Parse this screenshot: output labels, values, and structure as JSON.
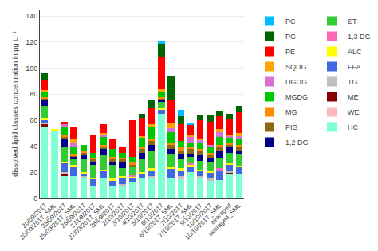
{
  "chart_data": {
    "type": "bar",
    "stacked": true,
    "categories": [
      "20/09/2017",
      "20/09/2017_SML",
      "25/09/2017",
      "25/09/2017_SML",
      "26/09/2017",
      "27/09/2017",
      "27/09/2017_SML",
      "28/09/2017",
      "2/10/2017",
      "3/10/2017",
      "4/10/2017",
      "5/10/2017",
      "6/10/2017",
      "6/10/2017_SML",
      "7/10/2017",
      "7/10/2017_SML",
      "9/10/2017",
      "10/10/2017",
      "10/10/2017_SML",
      "averaged",
      "averaged_SML"
    ],
    "series": [
      {
        "name": "HC",
        "color": "#7fffd4",
        "values": [
          55,
          52,
          17,
          17,
          16,
          9,
          15,
          10,
          10,
          13,
          15,
          16,
          65,
          15,
          15,
          20,
          16,
          14,
          14,
          19,
          19
        ]
      },
      {
        "name": "WE",
        "color": "#ffb6c1",
        "values": [
          0,
          0,
          0,
          0,
          0,
          0,
          0,
          0,
          0,
          0,
          0,
          0,
          0,
          0,
          1,
          0,
          0,
          0,
          0,
          0,
          0
        ]
      },
      {
        "name": "ME",
        "color": "#8b0000",
        "values": [
          2,
          0,
          2,
          0,
          0,
          0,
          0,
          0,
          0,
          0,
          0,
          0,
          0,
          0,
          0,
          0,
          0,
          0,
          0,
          1,
          0
        ]
      },
      {
        "name": "TG",
        "color": "#c0c0c0",
        "values": [
          1,
          0,
          1,
          0,
          1,
          0,
          0,
          0,
          1,
          0,
          0,
          1,
          0,
          0,
          1,
          0,
          1,
          1,
          0,
          1,
          0
        ]
      },
      {
        "name": "FFA",
        "color": "#4169e1",
        "values": [
          3,
          0,
          7,
          8,
          2,
          6,
          6,
          4,
          5,
          3,
          4,
          4,
          3,
          8,
          5,
          5,
          4,
          5,
          7,
          5,
          5
        ]
      },
      {
        "name": "ALC",
        "color": "#ffff00",
        "values": [
          1,
          1,
          1,
          1,
          1,
          1,
          1,
          1,
          1,
          1,
          1,
          2,
          1,
          1,
          1,
          1,
          1,
          1,
          1,
          1,
          1
        ]
      },
      {
        "name": "1,3 DG",
        "color": "#ff69b4",
        "values": [
          0,
          0,
          0,
          0,
          0,
          0,
          0,
          0,
          0,
          1,
          0,
          0,
          0,
          0,
          0,
          1,
          0,
          0,
          1,
          0,
          0
        ]
      },
      {
        "name": "ST",
        "color": "#32cd32",
        "values": [
          9,
          0,
          11,
          4,
          10,
          10,
          11,
          11,
          6,
          7,
          10,
          14,
          5,
          10,
          7,
          5,
          7,
          7,
          8,
          8,
          9
        ]
      },
      {
        "name": "1,2 DG",
        "color": "#00008b",
        "values": [
          5,
          0,
          7,
          2,
          3,
          2,
          5,
          2,
          5,
          0,
          5,
          4,
          2,
          4,
          4,
          2,
          4,
          3,
          5,
          4,
          3
        ]
      },
      {
        "name": "PIG",
        "color": "#8b6914",
        "values": [
          1,
          0,
          1,
          1,
          2,
          2,
          2,
          3,
          2,
          1,
          3,
          3,
          1,
          3,
          3,
          4,
          3,
          2,
          3,
          2,
          2
        ]
      },
      {
        "name": "MG",
        "color": "#ff8c00",
        "values": [
          1,
          0,
          2,
          1,
          1,
          1,
          1,
          1,
          1,
          2,
          2,
          2,
          1,
          2,
          2,
          1,
          2,
          2,
          2,
          1,
          2
        ]
      },
      {
        "name": "MGDG",
        "color": "#00c800",
        "values": [
          4,
          0,
          6,
          6,
          5,
          4,
          6,
          6,
          4,
          4,
          7,
          9,
          4,
          8,
          5,
          4,
          5,
          4,
          6,
          5,
          5
        ]
      },
      {
        "name": "DGDG",
        "color": "#da70d6",
        "values": [
          0,
          0,
          2,
          3,
          0,
          0,
          2,
          0,
          0,
          0,
          0,
          0,
          0,
          3,
          0,
          4,
          2,
          2,
          4,
          1,
          2
        ]
      },
      {
        "name": "SQDG",
        "color": "#ffa500",
        "values": [
          1,
          0,
          0,
          2,
          0,
          0,
          1,
          0,
          0,
          0,
          1,
          2,
          2,
          4,
          0,
          2,
          1,
          0,
          2,
          1,
          2
        ]
      },
      {
        "name": "PE",
        "color": "#ff0000",
        "values": [
          8,
          0,
          2,
          10,
          0,
          14,
          7,
          8,
          5,
          28,
          14,
          13,
          25,
          18,
          13,
          7,
          14,
          18,
          10,
          12,
          16
        ]
      },
      {
        "name": "PG",
        "color": "#006400",
        "values": [
          5,
          0,
          0,
          0,
          0,
          0,
          0,
          0,
          0,
          0,
          3,
          5,
          10,
          18,
          6,
          0,
          4,
          5,
          4,
          4,
          5
        ]
      },
      {
        "name": "PC",
        "color": "#00bfff",
        "values": [
          0,
          0,
          0,
          0,
          0,
          0,
          0,
          0,
          0,
          0,
          0,
          0,
          2,
          0,
          5,
          2,
          0,
          0,
          0,
          0,
          0
        ]
      }
    ],
    "ylabel": "dissolved lipid classes concentration in µg L⁻¹",
    "ylim": [
      0,
      145
    ],
    "yticks": [
      0,
      20,
      40,
      60,
      80,
      100,
      120,
      140
    ],
    "grid": true,
    "legend": "right"
  }
}
